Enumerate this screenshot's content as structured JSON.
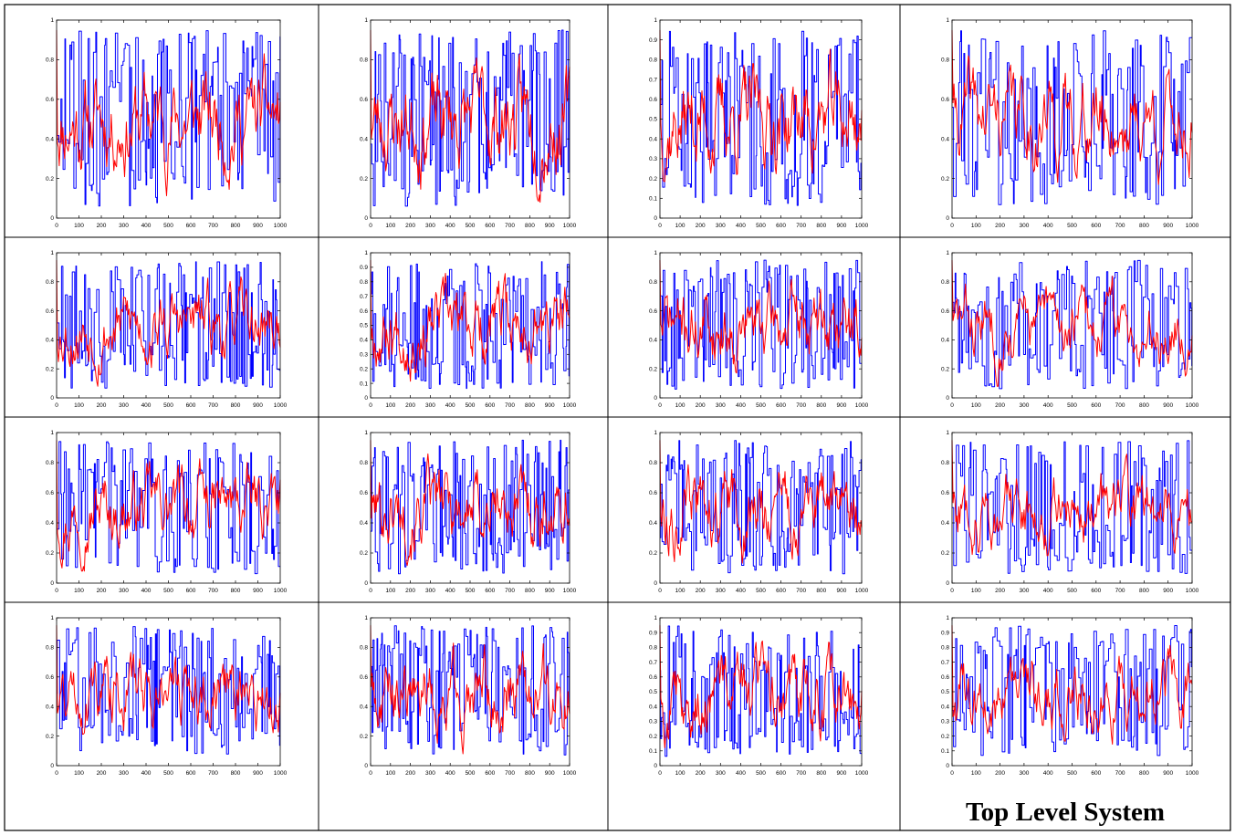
{
  "caption": "Top Level System",
  "colors": {
    "series_a": "#ff0000",
    "series_b": "#0000ff",
    "border": "#000000",
    "axes": "#000000"
  },
  "chart_data": [
    {
      "type": "line",
      "seed": 11,
      "xlim": [
        0,
        1000
      ],
      "ylim": [
        0,
        1
      ],
      "xticks": [
        0,
        100,
        200,
        300,
        400,
        500,
        600,
        700,
        800,
        900,
        1000
      ],
      "yticks": [
        0,
        0.2,
        0.4,
        0.6,
        0.8,
        1
      ],
      "ytick_labels": [
        "0",
        "0.2",
        "0.4",
        "0.6",
        "0.8",
        "1"
      ],
      "series": [
        {
          "color": "#ff0000",
          "kind": "smooth"
        },
        {
          "color": "#0000ff",
          "kind": "step"
        }
      ]
    },
    {
      "type": "line",
      "seed": 23,
      "xlim": [
        0,
        1000
      ],
      "ylim": [
        0,
        1
      ],
      "xticks": [
        0,
        100,
        200,
        300,
        400,
        500,
        600,
        700,
        800,
        900,
        1000
      ],
      "yticks": [
        0,
        0.2,
        0.4,
        0.6,
        0.8,
        1
      ],
      "ytick_labels": [
        "0",
        "0.2",
        "0.4",
        "0.6",
        "0.8",
        "1"
      ],
      "series": [
        {
          "color": "#ff0000",
          "kind": "smooth"
        },
        {
          "color": "#0000ff",
          "kind": "step"
        }
      ]
    },
    {
      "type": "line",
      "seed": 37,
      "xlim": [
        0,
        1000
      ],
      "ylim": [
        0,
        1
      ],
      "xticks": [
        0,
        100,
        200,
        300,
        400,
        500,
        600,
        700,
        800,
        900,
        1000
      ],
      "yticks": [
        0,
        0.1,
        0.2,
        0.3,
        0.4,
        0.5,
        0.6,
        0.7,
        0.8,
        0.9,
        1
      ],
      "ytick_labels": [
        "0",
        "0.1",
        "0.2",
        "0.3",
        "0.4",
        "0.5",
        "0.6",
        "0.7",
        "0.8",
        "0.9",
        "1"
      ],
      "series": [
        {
          "color": "#ff0000",
          "kind": "smooth"
        },
        {
          "color": "#0000ff",
          "kind": "step"
        }
      ]
    },
    {
      "type": "line",
      "seed": 41,
      "xlim": [
        0,
        1000
      ],
      "ylim": [
        0,
        1
      ],
      "xticks": [
        0,
        100,
        200,
        300,
        400,
        500,
        600,
        700,
        800,
        900,
        1000
      ],
      "yticks": [
        0,
        0.2,
        0.4,
        0.6,
        0.8,
        1
      ],
      "ytick_labels": [
        "0",
        "0.2",
        "0.4",
        "0.6",
        "0.8",
        "1"
      ],
      "series": [
        {
          "color": "#ff0000",
          "kind": "smooth"
        },
        {
          "color": "#0000ff",
          "kind": "step"
        }
      ]
    },
    {
      "type": "line",
      "seed": 53,
      "xlim": [
        0,
        1000
      ],
      "ylim": [
        0,
        1
      ],
      "xticks": [
        0,
        100,
        200,
        300,
        400,
        500,
        600,
        700,
        800,
        900,
        1000
      ],
      "yticks": [
        0,
        0.2,
        0.4,
        0.6,
        0.8,
        1
      ],
      "ytick_labels": [
        "0",
        "0.2",
        "0.4",
        "0.6",
        "0.8",
        "1"
      ],
      "series": [
        {
          "color": "#ff0000",
          "kind": "smooth"
        },
        {
          "color": "#0000ff",
          "kind": "step"
        }
      ]
    },
    {
      "type": "line",
      "seed": 67,
      "xlim": [
        0,
        1000
      ],
      "ylim": [
        0,
        1
      ],
      "xticks": [
        0,
        100,
        200,
        300,
        400,
        500,
        600,
        700,
        800,
        900,
        1000
      ],
      "yticks": [
        0,
        0.1,
        0.2,
        0.3,
        0.4,
        0.5,
        0.6,
        0.7,
        0.8,
        0.9,
        1
      ],
      "ytick_labels": [
        "0",
        "0.1",
        "0.2",
        "0.3",
        "0.4",
        "0.5",
        "0.6",
        "0.7",
        "0.8",
        "0.9",
        "1"
      ],
      "series": [
        {
          "color": "#ff0000",
          "kind": "smooth"
        },
        {
          "color": "#0000ff",
          "kind": "step"
        }
      ]
    },
    {
      "type": "line",
      "seed": 71,
      "xlim": [
        0,
        1000
      ],
      "ylim": [
        0,
        1
      ],
      "xticks": [
        0,
        100,
        200,
        300,
        400,
        500,
        600,
        700,
        800,
        900,
        1000
      ],
      "yticks": [
        0,
        0.2,
        0.4,
        0.6,
        0.8,
        1
      ],
      "ytick_labels": [
        "0",
        "0.2",
        "0.4",
        "0.6",
        "0.8",
        "1"
      ],
      "series": [
        {
          "color": "#ff0000",
          "kind": "smooth"
        },
        {
          "color": "#0000ff",
          "kind": "step"
        }
      ]
    },
    {
      "type": "line",
      "seed": 83,
      "xlim": [
        0,
        1000
      ],
      "ylim": [
        0,
        1
      ],
      "xticks": [
        0,
        100,
        200,
        300,
        400,
        500,
        600,
        700,
        800,
        900,
        1000
      ],
      "yticks": [
        0,
        0.2,
        0.4,
        0.6,
        0.8,
        1
      ],
      "ytick_labels": [
        "0",
        "0.2",
        "0.4",
        "0.6",
        "0.8",
        "1"
      ],
      "series": [
        {
          "color": "#ff0000",
          "kind": "smooth"
        },
        {
          "color": "#0000ff",
          "kind": "step"
        }
      ]
    },
    {
      "type": "line",
      "seed": 97,
      "xlim": [
        0,
        1000
      ],
      "ylim": [
        0,
        1
      ],
      "xticks": [
        0,
        100,
        200,
        300,
        400,
        500,
        600,
        700,
        800,
        900,
        1000
      ],
      "yticks": [
        0,
        0.2,
        0.4,
        0.6,
        0.8,
        1
      ],
      "ytick_labels": [
        "0",
        "0.2",
        "0.4",
        "0.6",
        "0.8",
        "1"
      ],
      "series": [
        {
          "color": "#ff0000",
          "kind": "smooth"
        },
        {
          "color": "#0000ff",
          "kind": "step"
        }
      ]
    },
    {
      "type": "line",
      "seed": 101,
      "xlim": [
        0,
        1000
      ],
      "ylim": [
        0,
        1
      ],
      "xticks": [
        0,
        100,
        200,
        300,
        400,
        500,
        600,
        700,
        800,
        900,
        1000
      ],
      "yticks": [
        0,
        0.2,
        0.4,
        0.6,
        0.8,
        1
      ],
      "ytick_labels": [
        "0",
        "0.2",
        "0.4",
        "0.6",
        "0.8",
        "1"
      ],
      "series": [
        {
          "color": "#ff0000",
          "kind": "smooth"
        },
        {
          "color": "#0000ff",
          "kind": "step"
        }
      ]
    },
    {
      "type": "line",
      "seed": 113,
      "xlim": [
        0,
        1000
      ],
      "ylim": [
        0,
        1
      ],
      "xticks": [
        0,
        100,
        200,
        300,
        400,
        500,
        600,
        700,
        800,
        900,
        1000
      ],
      "yticks": [
        0,
        0.2,
        0.4,
        0.6,
        0.8,
        1
      ],
      "ytick_labels": [
        "0",
        "0.2",
        "0.4",
        "0.6",
        "0.8",
        "1"
      ],
      "series": [
        {
          "color": "#ff0000",
          "kind": "smooth"
        },
        {
          "color": "#0000ff",
          "kind": "step"
        }
      ]
    },
    {
      "type": "line",
      "seed": 127,
      "xlim": [
        0,
        1000
      ],
      "ylim": [
        0,
        1
      ],
      "xticks": [
        0,
        100,
        200,
        300,
        400,
        500,
        600,
        700,
        800,
        900,
        1000
      ],
      "yticks": [
        0,
        0.2,
        0.4,
        0.6,
        0.8,
        1
      ],
      "ytick_labels": [
        "0",
        "0.2",
        "0.4",
        "0.6",
        "0.8",
        "1"
      ],
      "series": [
        {
          "color": "#ff0000",
          "kind": "smooth"
        },
        {
          "color": "#0000ff",
          "kind": "step"
        }
      ]
    },
    {
      "type": "line",
      "seed": 131,
      "xlim": [
        0,
        1000
      ],
      "ylim": [
        0,
        1
      ],
      "xticks": [
        0,
        100,
        200,
        300,
        400,
        500,
        600,
        700,
        800,
        900,
        1000
      ],
      "yticks": [
        0,
        0.2,
        0.4,
        0.6,
        0.8,
        1
      ],
      "ytick_labels": [
        "0",
        "0.2",
        "0.4",
        "0.6",
        "0.8",
        "1"
      ],
      "series": [
        {
          "color": "#ff0000",
          "kind": "smooth"
        },
        {
          "color": "#0000ff",
          "kind": "step"
        }
      ]
    },
    {
      "type": "line",
      "seed": 149,
      "xlim": [
        0,
        1000
      ],
      "ylim": [
        0,
        1
      ],
      "xticks": [
        0,
        100,
        200,
        300,
        400,
        500,
        600,
        700,
        800,
        900,
        1000
      ],
      "yticks": [
        0,
        0.2,
        0.4,
        0.6,
        0.8,
        1
      ],
      "ytick_labels": [
        "0",
        "0.2",
        "0.4",
        "0.6",
        "0.8",
        "1"
      ],
      "series": [
        {
          "color": "#ff0000",
          "kind": "smooth"
        },
        {
          "color": "#0000ff",
          "kind": "step"
        }
      ]
    },
    {
      "type": "line",
      "seed": 157,
      "xlim": [
        0,
        1000
      ],
      "ylim": [
        0,
        1
      ],
      "xticks": [
        0,
        100,
        200,
        300,
        400,
        500,
        600,
        700,
        800,
        900,
        1000
      ],
      "yticks": [
        0,
        0.1,
        0.2,
        0.3,
        0.4,
        0.5,
        0.6,
        0.7,
        0.8,
        0.9,
        1
      ],
      "ytick_labels": [
        "0",
        "0.1",
        "0.2",
        "0.3",
        "0.4",
        "0.5",
        "0.6",
        "0.7",
        "0.8",
        "0.9",
        "1"
      ],
      "series": [
        {
          "color": "#ff0000",
          "kind": "smooth"
        },
        {
          "color": "#0000ff",
          "kind": "step"
        }
      ]
    },
    {
      "type": "line",
      "seed": 163,
      "xlim": [
        0,
        1000
      ],
      "ylim": [
        0,
        1
      ],
      "xticks": [
        0,
        100,
        200,
        300,
        400,
        500,
        600,
        700,
        800,
        900,
        1000
      ],
      "yticks": [
        0,
        0.1,
        0.2,
        0.3,
        0.4,
        0.5,
        0.6,
        0.7,
        0.8,
        0.9,
        1
      ],
      "ytick_labels": [
        "0",
        "0.1",
        "0.2",
        "0.3",
        "0.4",
        "0.5",
        "0.6",
        "0.7",
        "0.8",
        "0.9",
        "1"
      ],
      "series": [
        {
          "color": "#ff0000",
          "kind": "smooth"
        },
        {
          "color": "#0000ff",
          "kind": "step"
        }
      ]
    }
  ]
}
